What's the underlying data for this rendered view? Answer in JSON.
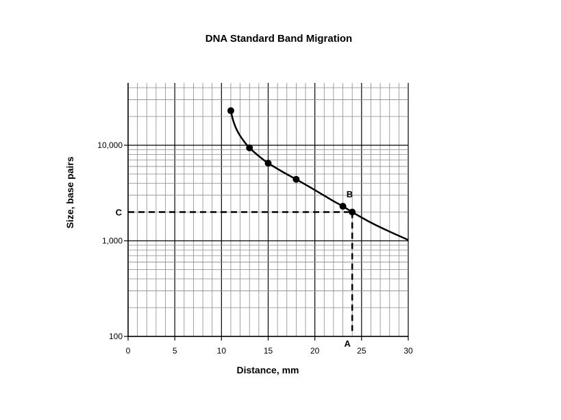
{
  "chart_data": {
    "type": "line",
    "title": "DNA Standard Band Migration",
    "xlabel": "Distance, mm",
    "ylabel": "Size, base pairs",
    "xlim": [
      0,
      30
    ],
    "ylim": [
      100,
      40000
    ],
    "yscale": "log",
    "grid": true,
    "x_ticks": [
      0,
      5,
      10,
      15,
      20,
      25,
      30
    ],
    "x_tick_labels": [
      "0",
      "5",
      "10",
      "15",
      "20",
      "25",
      "30"
    ],
    "y_ticks": [
      100,
      1000,
      10000
    ],
    "y_tick_labels": [
      "100",
      "1,000",
      "10,000"
    ],
    "points": [
      {
        "x": 11,
        "y": 23000
      },
      {
        "x": 13,
        "y": 9400
      },
      {
        "x": 15,
        "y": 6500
      },
      {
        "x": 18,
        "y": 4400
      },
      {
        "x": 23,
        "y": 2300
      },
      {
        "x": 24,
        "y": 2000
      }
    ],
    "curve": [
      {
        "x": 11,
        "y": 23000
      },
      {
        "x": 11.3,
        "y": 17500
      },
      {
        "x": 11.8,
        "y": 13500
      },
      {
        "x": 12.5,
        "y": 10700
      },
      {
        "x": 13,
        "y": 9400
      },
      {
        "x": 14,
        "y": 7700
      },
      {
        "x": 15,
        "y": 6500
      },
      {
        "x": 16.5,
        "y": 5300
      },
      {
        "x": 18,
        "y": 4400
      },
      {
        "x": 20,
        "y": 3400
      },
      {
        "x": 22,
        "y": 2600
      },
      {
        "x": 23,
        "y": 2300
      },
      {
        "x": 24,
        "y": 2000
      },
      {
        "x": 26,
        "y": 1550
      },
      {
        "x": 28,
        "y": 1250
      },
      {
        "x": 30,
        "y": 1020
      }
    ],
    "annotations": [
      {
        "label": "A",
        "x": 24
      },
      {
        "label": "B",
        "x": 23.5,
        "y": 2300
      },
      {
        "label": "C",
        "y": 2000
      }
    ]
  }
}
